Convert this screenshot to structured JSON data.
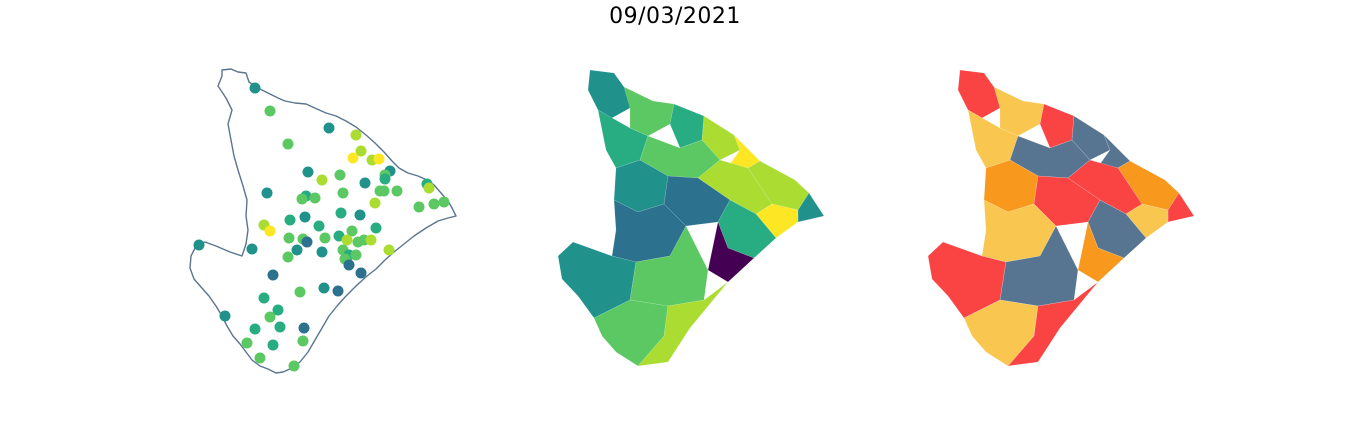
{
  "title": "09/03/2021",
  "colors": {
    "outline": "#5a7590",
    "viridis": [
      "#440154",
      "#2c728e",
      "#21918c",
      "#27ad81",
      "#5cc863",
      "#aadc32",
      "#fde725"
    ],
    "classes": [
      "#fa4444",
      "#f9c64f",
      "#f8981d",
      "#577590"
    ]
  },
  "points_map": {
    "points": [
      {
        "lon": 255,
        "lat": 88,
        "c": 2
      },
      {
        "lon": 270,
        "lat": 111,
        "c": 4
      },
      {
        "lon": 288,
        "lat": 144,
        "c": 4
      },
      {
        "lon": 329,
        "lat": 128,
        "c": 2
      },
      {
        "lon": 356,
        "lat": 135,
        "c": 5
      },
      {
        "lon": 361,
        "lat": 151,
        "c": 5
      },
      {
        "lon": 353,
        "lat": 158,
        "c": 6
      },
      {
        "lon": 372,
        "lat": 160,
        "c": 5
      },
      {
        "lon": 379,
        "lat": 159,
        "c": 6
      },
      {
        "lon": 390,
        "lat": 171,
        "c": 2
      },
      {
        "lon": 385,
        "lat": 175,
        "c": 4
      },
      {
        "lon": 385,
        "lat": 179,
        "c": 3
      },
      {
        "lon": 308,
        "lat": 172,
        "c": 2
      },
      {
        "lon": 322,
        "lat": 180,
        "c": 5
      },
      {
        "lon": 340,
        "lat": 175,
        "c": 4
      },
      {
        "lon": 365,
        "lat": 183,
        "c": 2
      },
      {
        "lon": 380,
        "lat": 191,
        "c": 4
      },
      {
        "lon": 384,
        "lat": 191,
        "c": 4
      },
      {
        "lon": 397,
        "lat": 191,
        "c": 4
      },
      {
        "lon": 427,
        "lat": 184,
        "c": 3
      },
      {
        "lon": 429,
        "lat": 188,
        "c": 5
      },
      {
        "lon": 444,
        "lat": 202,
        "c": 4
      },
      {
        "lon": 434,
        "lat": 204,
        "c": 4
      },
      {
        "lon": 419,
        "lat": 207,
        "c": 4
      },
      {
        "lon": 267,
        "lat": 193,
        "c": 2
      },
      {
        "lon": 306,
        "lat": 196,
        "c": 3
      },
      {
        "lon": 302,
        "lat": 199,
        "c": 4
      },
      {
        "lon": 315,
        "lat": 198,
        "c": 4
      },
      {
        "lon": 343,
        "lat": 193,
        "c": 4
      },
      {
        "lon": 375,
        "lat": 203,
        "c": 5
      },
      {
        "lon": 264,
        "lat": 225,
        "c": 5
      },
      {
        "lon": 270,
        "lat": 231,
        "c": 6
      },
      {
        "lon": 290,
        "lat": 220,
        "c": 3
      },
      {
        "lon": 305,
        "lat": 217,
        "c": 2
      },
      {
        "lon": 319,
        "lat": 226,
        "c": 3
      },
      {
        "lon": 341,
        "lat": 213,
        "c": 3
      },
      {
        "lon": 360,
        "lat": 215,
        "c": 2
      },
      {
        "lon": 376,
        "lat": 228,
        "c": 3
      },
      {
        "lon": 352,
        "lat": 231,
        "c": 4
      },
      {
        "lon": 325,
        "lat": 238,
        "c": 4
      },
      {
        "lon": 289,
        "lat": 238,
        "c": 4
      },
      {
        "lon": 303,
        "lat": 239,
        "c": 4
      },
      {
        "lon": 339,
        "lat": 236,
        "c": 3
      },
      {
        "lon": 347,
        "lat": 240,
        "c": 5
      },
      {
        "lon": 358,
        "lat": 242,
        "c": 4
      },
      {
        "lon": 364,
        "lat": 240,
        "c": 4
      },
      {
        "lon": 371,
        "lat": 240,
        "c": 5
      },
      {
        "lon": 343,
        "lat": 250,
        "c": 4
      },
      {
        "lon": 199,
        "lat": 245,
        "c": 2
      },
      {
        "lon": 252,
        "lat": 249,
        "c": 2
      },
      {
        "lon": 297,
        "lat": 250,
        "c": 2
      },
      {
        "lon": 307,
        "lat": 242,
        "c": 1
      },
      {
        "lon": 322,
        "lat": 252,
        "c": 2
      },
      {
        "lon": 288,
        "lat": 257,
        "c": 4
      },
      {
        "lon": 349,
        "lat": 255,
        "c": 3
      },
      {
        "lon": 356,
        "lat": 255,
        "c": 4
      },
      {
        "lon": 345,
        "lat": 259,
        "c": 4
      },
      {
        "lon": 389,
        "lat": 250,
        "c": 5
      },
      {
        "lon": 349,
        "lat": 265,
        "c": 1
      },
      {
        "lon": 361,
        "lat": 273,
        "c": 1
      },
      {
        "lon": 273,
        "lat": 275,
        "c": 1
      },
      {
        "lon": 324,
        "lat": 288,
        "c": 2
      },
      {
        "lon": 338,
        "lat": 291,
        "c": 1
      },
      {
        "lon": 300,
        "lat": 292,
        "c": 4
      },
      {
        "lon": 264,
        "lat": 298,
        "c": 3
      },
      {
        "lon": 278,
        "lat": 310,
        "c": 3
      },
      {
        "lon": 270,
        "lat": 317,
        "c": 4
      },
      {
        "lon": 225,
        "lat": 316,
        "c": 2
      },
      {
        "lon": 255,
        "lat": 329,
        "c": 3
      },
      {
        "lon": 280,
        "lat": 327,
        "c": 3
      },
      {
        "lon": 304,
        "lat": 328,
        "c": 1
      },
      {
        "lon": 247,
        "lat": 343,
        "c": 4
      },
      {
        "lon": 273,
        "lat": 345,
        "c": 3
      },
      {
        "lon": 303,
        "lat": 341,
        "c": 4
      },
      {
        "lon": 260,
        "lat": 358,
        "c": 4
      },
      {
        "lon": 294,
        "lat": 366,
        "c": 4
      }
    ]
  },
  "choropleth_map": {
    "regions": [
      {
        "c": 2
      },
      {
        "c": 4
      },
      {
        "c": 3
      },
      {
        "c": 5
      },
      {
        "c": 6
      },
      {
        "c": 5
      },
      {
        "c": 2
      },
      {
        "c": 3
      },
      {
        "c": 4
      },
      {
        "c": 5
      },
      {
        "c": 6
      },
      {
        "c": 2
      },
      {
        "c": 1
      },
      {
        "c": 3
      },
      {
        "c": 1
      },
      {
        "c": 0
      },
      {
        "c": 2
      },
      {
        "c": 4
      },
      {
        "c": 4
      },
      {
        "c": 5
      }
    ]
  },
  "class_map": {
    "regions": [
      {
        "c": 0
      },
      {
        "c": 1
      },
      {
        "c": 0
      },
      {
        "c": 3
      },
      {
        "c": 3
      },
      {
        "c": 2
      },
      {
        "c": 0
      },
      {
        "c": 1
      },
      {
        "c": 3
      },
      {
        "c": 0
      },
      {
        "c": 1
      },
      {
        "c": 2
      },
      {
        "c": 0
      },
      {
        "c": 3
      },
      {
        "c": 1
      },
      {
        "c": 2
      },
      {
        "c": 0
      },
      {
        "c": 3
      },
      {
        "c": 1
      },
      {
        "c": 0
      }
    ]
  }
}
